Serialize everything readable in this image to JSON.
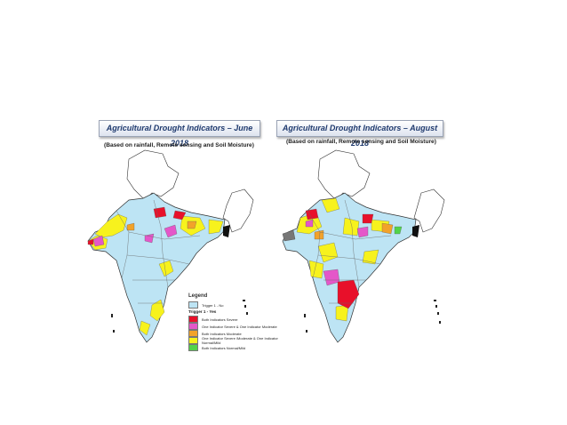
{
  "panels": [
    {
      "title": "Agricultural Drought Indicators – June 2018",
      "subtitle": "(Based on rainfall, Remote sensing and Soil Moisture)"
    },
    {
      "title": "Agricultural Drought Indicators – August 2018",
      "subtitle": "(Based on rainfall, Remote sensing and Soil Moisture)"
    }
  ],
  "legend": {
    "title": "Legend",
    "trigger_no": "Trigger 1 - No",
    "trigger_yes": "Trigger 1 - Yes",
    "items": [
      {
        "label": "Both Indicators Severe",
        "color": "#e8102a"
      },
      {
        "label": "One Indicator Severe & One Indicator Moderate",
        "color": "#e457c9"
      },
      {
        "label": "Both Indicators Moderate",
        "color": "#f2a22a"
      },
      {
        "label": "One Indicator Severe /Moderate & One Indicator Normal/Mild",
        "color": "#f7f21d"
      },
      {
        "label": "Both Indicators Normal/Mild",
        "color": "#52d34a"
      }
    ],
    "no_color": "#bde4f4"
  },
  "colors": {
    "land": "#bde4f4",
    "yellow": "#f7f21d",
    "red": "#e8102a",
    "magenta": "#e457c9",
    "orange": "#f2a22a",
    "green": "#52d34a",
    "gray": "#777777",
    "title_text": "#1f3a6e"
  }
}
